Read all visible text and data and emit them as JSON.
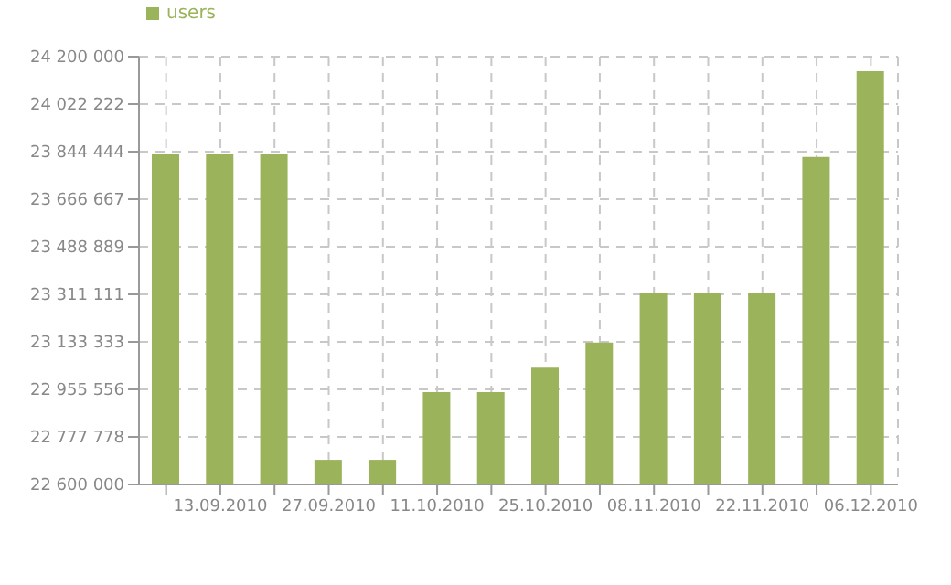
{
  "chart_data": {
    "type": "bar",
    "categories": [
      null,
      "13.09.2010",
      null,
      "27.09.2010",
      null,
      "11.10.2010",
      null,
      "25.10.2010",
      null,
      "08.11.2010",
      null,
      "22.11.2010",
      null,
      "06.12.2010"
    ],
    "series": [
      {
        "name": "users",
        "color": "#9bb35a",
        "values": [
          23835000,
          23835000,
          23835000,
          22692000,
          22692000,
          22945000,
          22945000,
          23037000,
          23131000,
          23316000,
          23316000,
          23316000,
          23825000,
          24145000
        ]
      }
    ],
    "ylim": [
      22600000,
      24200000
    ],
    "yticks": [
      {
        "value": 22600000,
        "label": "22 600 000"
      },
      {
        "value": 22777778,
        "label": "22 777 778"
      },
      {
        "value": 22955556,
        "label": "22 955 556"
      },
      {
        "value": 23133333,
        "label": "23 133 333"
      },
      {
        "value": 23311111,
        "label": "23 311 111"
      },
      {
        "value": 23488889,
        "label": "23 488 889"
      },
      {
        "value": 23666667,
        "label": "23 666 667"
      },
      {
        "value": 23844444,
        "label": "23 844 444"
      },
      {
        "value": 24022222,
        "label": "24 022 222"
      },
      {
        "value": 24200000,
        "label": "24 200 000"
      }
    ],
    "grid": true,
    "legend": "top left"
  }
}
